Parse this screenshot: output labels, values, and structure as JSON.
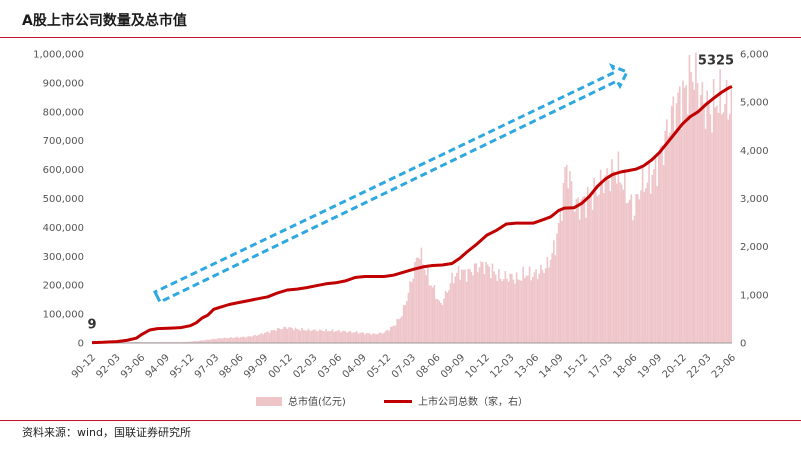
{
  "header": {
    "title": "A股上市公司数量及总市值"
  },
  "footer": {
    "source": "资料来源：wind，国联证券研究所"
  },
  "colors": {
    "bar": "#eec5c9",
    "line": "#c00000",
    "arrow": "#2fa8e0",
    "rule": "#c8102e"
  },
  "chart_data": {
    "type": "bar+line",
    "categories": [
      "90-12",
      "92-03",
      "93-06",
      "94-09",
      "95-12",
      "97-03",
      "98-06",
      "99-09",
      "00-12",
      "02-03",
      "03-06",
      "04-09",
      "05-12",
      "07-03",
      "08-06",
      "09-09",
      "10-12",
      "12-03",
      "13-06",
      "14-09",
      "15-12",
      "17-03",
      "18-06",
      "19-09",
      "20-12",
      "22-03",
      "23-06"
    ],
    "left_axis": {
      "range": [
        0,
        1000000
      ],
      "ticks": [
        "0",
        "100,000",
        "200,000",
        "300,000",
        "400,000",
        "500,000",
        "600,000",
        "700,000",
        "800,000",
        "900,000",
        "1,000,000"
      ]
    },
    "right_axis": {
      "range": [
        0,
        6000
      ],
      "ticks": [
        "0",
        "1,000",
        "2,000",
        "3,000",
        "4,000",
        "5,000",
        "6,000"
      ]
    },
    "series": [
      {
        "name": "总市值(亿元)",
        "type": "bar",
        "axis": "left",
        "points": [
          [
            1990.92,
            0
          ],
          [
            1991.5,
            1000
          ],
          [
            1992.2,
            1200
          ],
          [
            1993.0,
            3500
          ],
          [
            1993.5,
            3600
          ],
          [
            1994.0,
            3200
          ],
          [
            1994.7,
            3600
          ],
          [
            1995.5,
            3300
          ],
          [
            1996.0,
            4500
          ],
          [
            1996.5,
            8000
          ],
          [
            1997.0,
            12000
          ],
          [
            1997.5,
            16000
          ],
          [
            1998.0,
            18000
          ],
          [
            1998.5,
            20000
          ],
          [
            1999.0,
            22000
          ],
          [
            1999.5,
            28000
          ],
          [
            2000.0,
            38000
          ],
          [
            2000.5,
            48000
          ],
          [
            2001.0,
            54000
          ],
          [
            2001.5,
            48000
          ],
          [
            2002.0,
            45000
          ],
          [
            2002.5,
            44000
          ],
          [
            2003.0,
            43000
          ],
          [
            2003.5,
            42000
          ],
          [
            2004.0,
            40000
          ],
          [
            2004.5,
            37000
          ],
          [
            2005.0,
            34000
          ],
          [
            2005.5,
            31000
          ],
          [
            2006.0,
            36000
          ],
          [
            2006.5,
            60000
          ],
          [
            2006.9,
            95000
          ],
          [
            2007.2,
            160000
          ],
          [
            2007.5,
            240000
          ],
          [
            2007.8,
            320000
          ],
          [
            2008.0,
            280000
          ],
          [
            2008.3,
            220000
          ],
          [
            2008.6,
            180000
          ],
          [
            2008.9,
            130000
          ],
          [
            2009.2,
            170000
          ],
          [
            2009.5,
            220000
          ],
          [
            2009.9,
            250000
          ],
          [
            2010.3,
            240000
          ],
          [
            2010.8,
            265000
          ],
          [
            2011.2,
            270000
          ],
          [
            2011.6,
            250000
          ],
          [
            2012.0,
            225000
          ],
          [
            2012.5,
            230000
          ],
          [
            2012.9,
            220000
          ],
          [
            2013.3,
            240000
          ],
          [
            2013.7,
            235000
          ],
          [
            2014.0,
            245000
          ],
          [
            2014.4,
            265000
          ],
          [
            2014.8,
            330000
          ],
          [
            2015.1,
            440000
          ],
          [
            2015.4,
            620000
          ],
          [
            2015.6,
            560000
          ],
          [
            2015.8,
            470000
          ],
          [
            2016.1,
            480000
          ],
          [
            2016.5,
            500000
          ],
          [
            2016.9,
            520000
          ],
          [
            2017.3,
            560000
          ],
          [
            2017.7,
            580000
          ],
          [
            2018.0,
            600000
          ],
          [
            2018.3,
            560000
          ],
          [
            2018.6,
            500000
          ],
          [
            2018.9,
            450000
          ],
          [
            2019.2,
            540000
          ],
          [
            2019.6,
            560000
          ],
          [
            2020.0,
            600000
          ],
          [
            2020.4,
            680000
          ],
          [
            2020.8,
            780000
          ],
          [
            2021.2,
            840000
          ],
          [
            2021.5,
            860000
          ],
          [
            2021.8,
            920000
          ],
          [
            2022.0,
            940000
          ],
          [
            2022.3,
            860000
          ],
          [
            2022.6,
            820000
          ],
          [
            2022.9,
            800000
          ],
          [
            2023.2,
            850000
          ],
          [
            2023.5,
            830000
          ],
          [
            2023.9,
            830000
          ]
        ]
      },
      {
        "name": "上市公司总数（家，右）",
        "type": "line",
        "axis": "right",
        "points": [
          [
            1990.92,
            9
          ],
          [
            1991.5,
            14
          ],
          [
            1992.2,
            30
          ],
          [
            1992.7,
            53
          ],
          [
            1993.2,
            100
          ],
          [
            1993.5,
            180
          ],
          [
            1993.9,
            270
          ],
          [
            1994.3,
            300
          ],
          [
            1995.0,
            310
          ],
          [
            1995.5,
            320
          ],
          [
            1996.0,
            360
          ],
          [
            1996.3,
            420
          ],
          [
            1996.6,
            520
          ],
          [
            1996.9,
            580
          ],
          [
            1997.2,
            700
          ],
          [
            1997.5,
            740
          ],
          [
            1998.0,
            800
          ],
          [
            1998.5,
            840
          ],
          [
            1999.0,
            880
          ],
          [
            1999.5,
            920
          ],
          [
            2000.0,
            960
          ],
          [
            2000.5,
            1040
          ],
          [
            2001.0,
            1100
          ],
          [
            2001.5,
            1120
          ],
          [
            2002.0,
            1150
          ],
          [
            2002.5,
            1190
          ],
          [
            2003.0,
            1230
          ],
          [
            2003.5,
            1250
          ],
          [
            2004.0,
            1290
          ],
          [
            2004.5,
            1360
          ],
          [
            2005.0,
            1380
          ],
          [
            2005.5,
            1380
          ],
          [
            2006.0,
            1380
          ],
          [
            2006.5,
            1410
          ],
          [
            2007.0,
            1470
          ],
          [
            2007.5,
            1530
          ],
          [
            2008.0,
            1580
          ],
          [
            2008.5,
            1610
          ],
          [
            2009.0,
            1620
          ],
          [
            2009.5,
            1650
          ],
          [
            2009.9,
            1760
          ],
          [
            2010.3,
            1900
          ],
          [
            2010.8,
            2060
          ],
          [
            2011.3,
            2240
          ],
          [
            2011.8,
            2340
          ],
          [
            2012.3,
            2470
          ],
          [
            2012.8,
            2490
          ],
          [
            2013.2,
            2490
          ],
          [
            2013.7,
            2490
          ],
          [
            2014.2,
            2560
          ],
          [
            2014.6,
            2620
          ],
          [
            2015.0,
            2750
          ],
          [
            2015.3,
            2800
          ],
          [
            2015.8,
            2810
          ],
          [
            2016.2,
            2900
          ],
          [
            2016.6,
            3050
          ],
          [
            2017.0,
            3250
          ],
          [
            2017.4,
            3400
          ],
          [
            2017.8,
            3500
          ],
          [
            2018.2,
            3550
          ],
          [
            2018.6,
            3580
          ],
          [
            2019.0,
            3610
          ],
          [
            2019.4,
            3680
          ],
          [
            2019.8,
            3800
          ],
          [
            2020.2,
            3950
          ],
          [
            2020.6,
            4150
          ],
          [
            2021.0,
            4350
          ],
          [
            2021.4,
            4550
          ],
          [
            2021.8,
            4700
          ],
          [
            2022.2,
            4800
          ],
          [
            2022.6,
            4950
          ],
          [
            2023.0,
            5080
          ],
          [
            2023.4,
            5200
          ],
          [
            2023.8,
            5300
          ],
          [
            2023.95,
            5325
          ]
        ]
      }
    ],
    "annotations": [
      {
        "text": "9",
        "series": 1,
        "x": 1990.92,
        "y": 9
      },
      {
        "text": "5325",
        "series": 1,
        "x": 2023.95,
        "y": 5325
      }
    ],
    "legend_position": "bottom-center"
  }
}
